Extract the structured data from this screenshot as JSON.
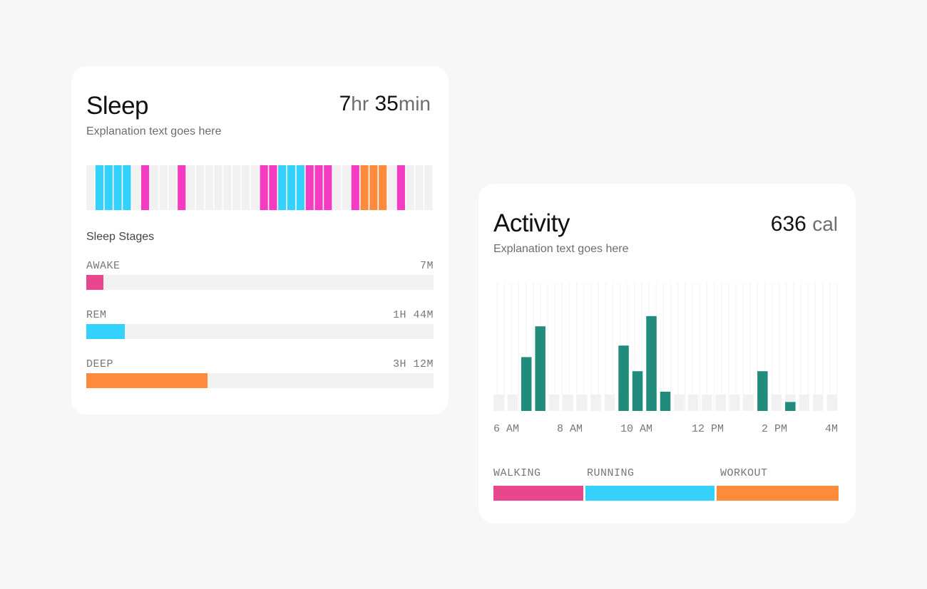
{
  "sleep": {
    "title": "Sleep",
    "description": "Explanation text goes here",
    "total": {
      "hours": "7",
      "hours_unit": "hr",
      "minutes": "35",
      "minutes_unit": "min"
    },
    "stages_title": "Sleep Stages",
    "colors": {
      "awake": "#f43cc2",
      "rem": "#33d1fb",
      "deep": "#fe8a3b",
      "empty": "#f1f1f1"
    },
    "hypnogram": [
      "empty",
      "rem",
      "rem",
      "rem",
      "rem",
      "empty",
      "awake",
      "empty",
      "empty",
      "empty",
      "awake",
      "empty",
      "empty",
      "empty",
      "empty",
      "empty",
      "empty",
      "empty",
      "empty",
      "awake",
      "awake",
      "rem",
      "rem",
      "rem",
      "awake",
      "awake",
      "awake",
      "empty",
      "empty",
      "awake",
      "deep",
      "deep",
      "deep",
      "empty",
      "awake",
      "empty",
      "empty",
      "empty"
    ],
    "stages": [
      {
        "key": "awake",
        "label": "AWAKE",
        "value": "7M",
        "fraction": 0.05,
        "color": "#e9468e"
      },
      {
        "key": "rem",
        "label": "REM",
        "value": "1H 44M",
        "fraction": 0.11,
        "color": "#33d1fb"
      },
      {
        "key": "deep",
        "label": "DEEP",
        "value": "3H 12M",
        "fraction": 0.35,
        "color": "#fe8a3b"
      }
    ]
  },
  "activity": {
    "title": "Activity",
    "description": "Explanation text goes here",
    "total": {
      "value": "636",
      "unit": "cal"
    },
    "bar_color": "#218b7c",
    "empty_color": "#f1f1f1",
    "bars": [
      0,
      0,
      0.42,
      0.66,
      0,
      0,
      0,
      0,
      0,
      0.51,
      0.31,
      0.74,
      0.15,
      0,
      0,
      0,
      0,
      0,
      0,
      0.31,
      0,
      0.07,
      0,
      0,
      0
    ],
    "x_labels": [
      "6 AM",
      "8 AM",
      "10 AM",
      "12 PM",
      "2 PM",
      "4M"
    ],
    "legend": [
      {
        "label": "WALKING",
        "color": "#e9468e",
        "fraction": 0.265
      },
      {
        "label": "RUNNING",
        "color": "#33d1fb",
        "fraction": 0.378
      },
      {
        "label": "WORKOUT",
        "color": "#fe8a3b",
        "fraction": 0.357
      }
    ]
  }
}
